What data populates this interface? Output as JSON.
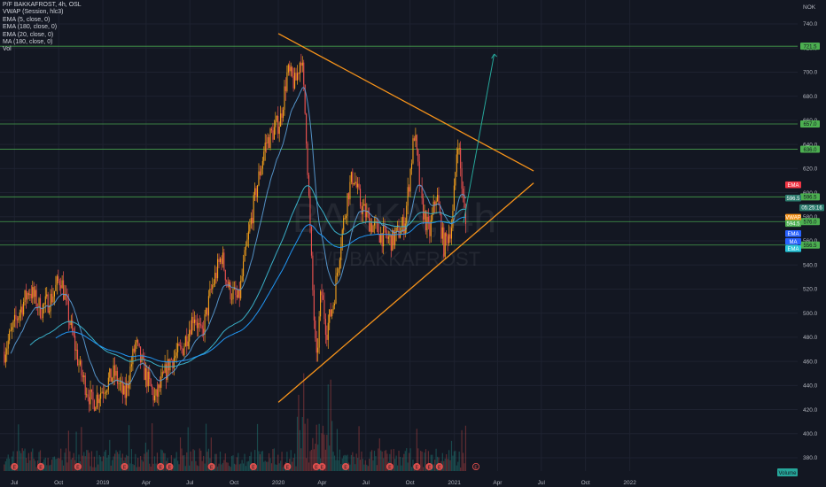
{
  "chart_data": {
    "type": "candlestick",
    "symbol": "P/F BAKKAFROST, 4h, OSL",
    "currency": "NOK",
    "watermark_symbol": "BAKKA, 4h",
    "watermark_name": "P/F BAKKAFROST",
    "legend": [
      "P/F BAKKAFROST, 4h, OSL",
      "VWAP (Session, hlc3)",
      "EMA (5, close, 0)",
      "EMA (180, close, 0)",
      "EMA (20, close, 0)",
      "MA (180, close, 0)",
      "Vol"
    ],
    "y_ticks": [
      "740.0",
      "720.0",
      "700.0",
      "680.0",
      "660.0",
      "640.0",
      "620.0",
      "600.0",
      "580.0",
      "560.0",
      "540.0",
      "520.0",
      "500.0",
      "480.0",
      "460.0",
      "440.0",
      "420.0",
      "400.0",
      "380.0"
    ],
    "x_ticks": [
      "Jul",
      "Oct",
      "2019",
      "Apr",
      "Jul",
      "Oct",
      "2020",
      "Apr",
      "Jul",
      "Oct",
      "2021",
      "Apr",
      "Jul",
      "Oct",
      "2022"
    ],
    "ylim": [
      372,
      745
    ],
    "price_path": [
      [
        "2018-06-10",
        468
      ],
      [
        "2018-07-10",
        500
      ],
      [
        "2018-08-01",
        520
      ],
      [
        "2018-08-25",
        503
      ],
      [
        "2018-09-15",
        512
      ],
      [
        "2018-10-05",
        530
      ],
      [
        "2018-10-20",
        500
      ],
      [
        "2018-11-15",
        452
      ],
      [
        "2018-12-10",
        425
      ],
      [
        "2019-01-05",
        440
      ],
      [
        "2019-01-25",
        450
      ],
      [
        "2019-02-15",
        430
      ],
      [
        "2019-03-10",
        475
      ],
      [
        "2019-03-25",
        455
      ],
      [
        "2019-04-20",
        428
      ],
      [
        "2019-05-20",
        460
      ],
      [
        "2019-06-15",
        470
      ],
      [
        "2019-07-10",
        500
      ],
      [
        "2019-07-25",
        480
      ],
      [
        "2019-08-15",
        520
      ],
      [
        "2019-09-05",
        548
      ],
      [
        "2019-09-20",
        520
      ],
      [
        "2019-10-10",
        510
      ],
      [
        "2019-10-25",
        550
      ],
      [
        "2019-11-15",
        600
      ],
      [
        "2019-12-05",
        640
      ],
      [
        "2019-12-20",
        650
      ],
      [
        "2020-01-05",
        660
      ],
      [
        "2020-01-20",
        700
      ],
      [
        "2020-02-05",
        690
      ],
      [
        "2020-02-18",
        715
      ],
      [
        "2020-02-28",
        650
      ],
      [
        "2020-03-10",
        540
      ],
      [
        "2020-03-20",
        455
      ],
      [
        "2020-03-30",
        520
      ],
      [
        "2020-04-10",
        485
      ],
      [
        "2020-04-25",
        510
      ],
      [
        "2020-05-10",
        560
      ],
      [
        "2020-05-25",
        600
      ],
      [
        "2020-06-05",
        615
      ],
      [
        "2020-06-20",
        590
      ],
      [
        "2020-07-10",
        575
      ],
      [
        "2020-08-01",
        565
      ],
      [
        "2020-08-25",
        560
      ],
      [
        "2020-09-20",
        575
      ],
      [
        "2020-10-10",
        650
      ],
      [
        "2020-10-25",
        590
      ],
      [
        "2020-11-10",
        565
      ],
      [
        "2020-11-25",
        600
      ],
      [
        "2020-12-10",
        555
      ],
      [
        "2020-12-28",
        575
      ],
      [
        "2021-01-08",
        648
      ],
      [
        "2021-01-18",
        600
      ],
      [
        "2021-01-26",
        568
      ]
    ],
    "horizontal_levels": [
      {
        "value": 721.5,
        "label": "721.5"
      },
      {
        "value": 657.0,
        "label": "657.0"
      },
      {
        "value": 636.0,
        "label": "636.0"
      },
      {
        "value": 596.5,
        "label": "596.5"
      },
      {
        "value": 576.0,
        "label": "576.0"
      },
      {
        "value": 556.5,
        "label": "556.5"
      }
    ],
    "price_tags": [
      {
        "value": 606.5,
        "label": "EMA",
        "color": "#f23645"
      },
      {
        "value": 595.5,
        "label": "596.5",
        "color": "#2a7a6c"
      },
      {
        "value": 587.5,
        "label": "05:25:16",
        "color": "#2a7a6c"
      },
      {
        "value": 579.5,
        "label": "VWAP",
        "color": "#f7931a"
      },
      {
        "value": 574.5,
        "label": "594.5",
        "color": "#4caf50"
      },
      {
        "value": 566.0,
        "label": "EMA",
        "color": "#2962ff"
      },
      {
        "value": 559.5,
        "label": "MA",
        "color": "#2962ff"
      },
      {
        "value": 553.5,
        "label": "EMA",
        "color": "#26c6da"
      }
    ],
    "trendlines": [
      {
        "name": "upper-trendline",
        "from": [
          "2020-01-01",
          732
        ],
        "to": [
          "2021-06-15",
          618
        ],
        "color": "#f7931a"
      },
      {
        "name": "lower-trendline",
        "from": [
          "2020-01-01",
          426
        ],
        "to": [
          "2021-06-15",
          608
        ],
        "color": "#f7931a"
      }
    ],
    "projection": {
      "from": [
        "2021-01-20",
        575
      ],
      "to": [
        "2021-03-25",
        715
      ],
      "color": "#26a69a"
    },
    "earnings_markers": [
      "2018-07-01",
      "2018-08-25",
      "2018-11-10",
      "2019-02-15",
      "2019-05-01",
      "2019-05-20",
      "2019-08-15",
      "2019-11-10",
      "2020-01-20",
      "2020-03-20",
      "2020-04-01",
      "2020-05-20",
      "2020-08-20",
      "2020-10-15",
      "2020-11-10",
      "2020-12-01",
      "2021-02-15"
    ],
    "volume_label": "Volume",
    "moving_averages": {
      "ema20_color": "#5b9fd8",
      "ema180_color": "#2196f3",
      "ma180_color": "#3ab0c8"
    }
  }
}
